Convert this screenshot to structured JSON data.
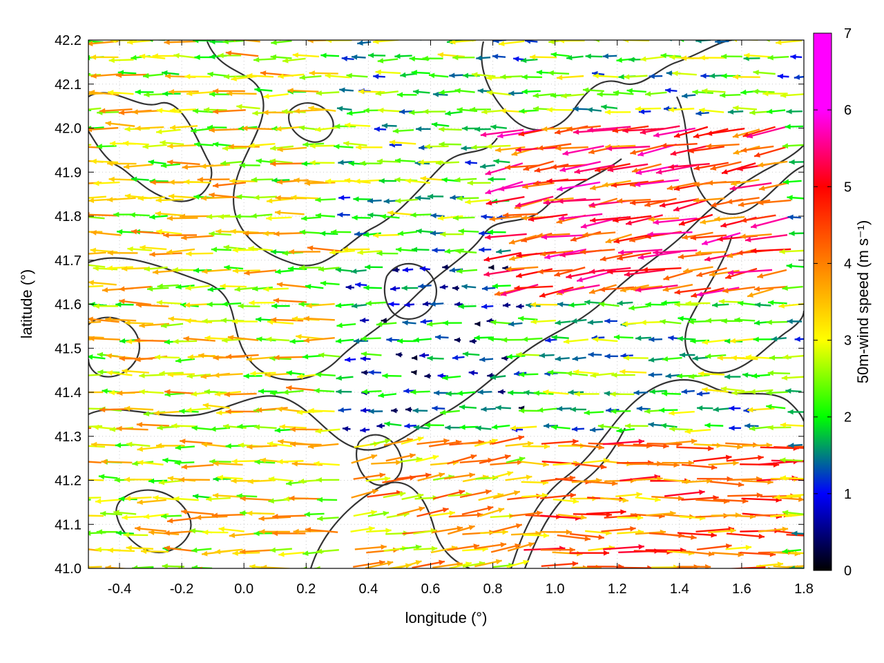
{
  "chart_data": {
    "type": "vector-field",
    "xlabel": "longitude (°)",
    "ylabel": "latitude (°)",
    "xlim": [
      -0.5,
      1.8
    ],
    "ylim": [
      41.0,
      42.2
    ],
    "xticks": [
      -0.4,
      -0.2,
      0.0,
      0.2,
      0.4,
      0.6,
      0.8,
      1.0,
      1.2,
      1.4,
      1.6,
      1.8
    ],
    "xtick_labels": [
      "-0.4",
      "-0.2",
      "0.0",
      "0.2",
      "0.4",
      "0.6",
      "0.8",
      "1.0",
      "1.2",
      "1.4",
      "1.6",
      "1.8"
    ],
    "yticks": [
      41.0,
      41.1,
      41.2,
      41.3,
      41.4,
      41.5,
      41.6,
      41.7,
      41.8,
      41.9,
      42.0,
      42.1,
      42.2
    ],
    "ytick_labels": [
      "41.0",
      "41.1",
      "41.2",
      "41.3",
      "41.4",
      "41.5",
      "41.6",
      "41.7",
      "41.8",
      "41.9",
      "42.0",
      "42.1",
      "42.2"
    ],
    "grid": true,
    "colorbar": {
      "label": "50m-wind speed (m s⁻¹)",
      "range": [
        0,
        7
      ],
      "ticks": [
        0,
        1,
        2,
        3,
        4,
        5,
        6,
        7
      ],
      "tick_labels": [
        "0",
        "1",
        "2",
        "3",
        "4",
        "5",
        "6",
        "7"
      ],
      "colors": [
        "#000000",
        "#0000ff",
        "#00ff00",
        "#ffff00",
        "#ff8000",
        "#ff0000",
        "#ff00ff"
      ]
    },
    "wind_regions": [
      {
        "lon": [
          -0.5,
          0.3
        ],
        "lat": [
          41.0,
          42.2
        ],
        "speed": 3.5,
        "dir_deg": 180
      },
      {
        "lon": [
          0.3,
          0.95
        ],
        "lat": [
          41.3,
          41.7
        ],
        "speed": 1.5,
        "dir_deg": 180
      },
      {
        "lon": [
          0.9,
          1.8
        ],
        "lat": [
          41.6,
          42.0
        ],
        "speed": 5.5,
        "dir_deg": 200
      },
      {
        "lon": [
          0.9,
          1.8
        ],
        "lat": [
          41.0,
          41.3
        ],
        "speed": 4.8,
        "dir_deg": 0
      },
      {
        "lon": [
          0.3,
          0.9
        ],
        "lat": [
          41.0,
          41.3
        ],
        "speed": 4.0,
        "dir_deg": 20
      }
    ],
    "contour_levels_note": ""
  }
}
